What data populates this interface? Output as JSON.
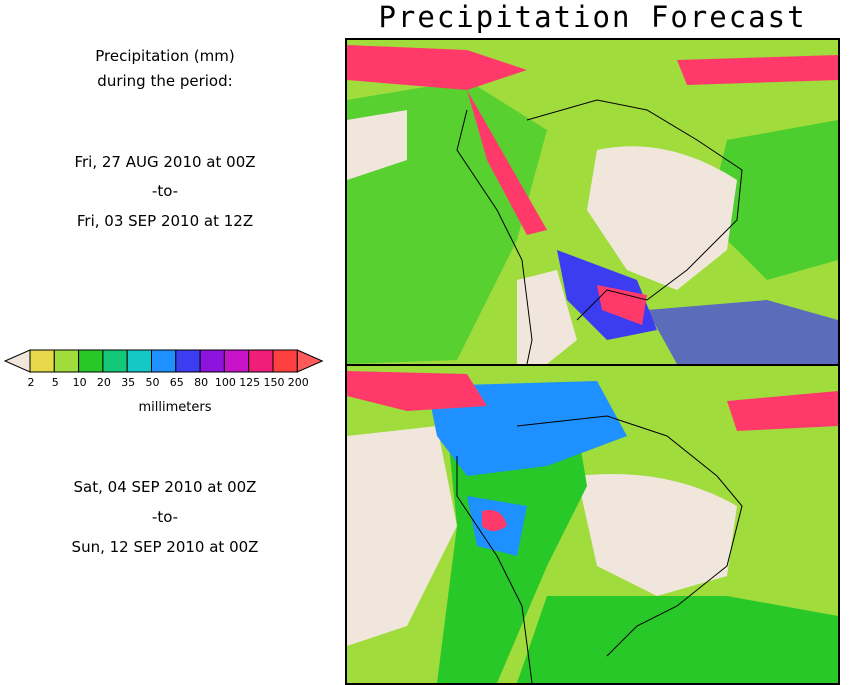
{
  "title": "Precipitation Forecast",
  "period_caption": [
    "Precipitation (mm)",
    "during the period:"
  ],
  "period1": {
    "start": "Fri, 27 AUG 2010 at 00Z",
    "sep": "-to-",
    "end": "Fri, 03 SEP 2010 at 12Z"
  },
  "period2": {
    "start": "Sat, 04 SEP 2010 at 00Z",
    "sep": "-to-",
    "end": "Sun, 12 SEP 2010 at 00Z"
  },
  "legend": {
    "unit": "millimeters",
    "ticks": [
      "2",
      "5",
      "10",
      "20",
      "35",
      "50",
      "65",
      "80",
      "100",
      "125",
      "150",
      "200"
    ],
    "colors": [
      "#f0e6dc",
      "#e6d84a",
      "#a0dc3c",
      "#28c828",
      "#14c878",
      "#14c8c8",
      "#1e90ff",
      "#3c3cf0",
      "#8c14dc",
      "#c814c8",
      "#f01e78",
      "#ff4040",
      "#ff5a5a"
    ]
  },
  "maps": [
    {
      "name": "week1",
      "colors": {
        "ocean": "#a0dc3c",
        "dry": "#f0e6dc",
        "moderate": "#28c828",
        "heavy": "#3c3cf0",
        "extreme": "#ff3a6a"
      }
    },
    {
      "name": "week2",
      "colors": {
        "ocean": "#a0dc3c",
        "dry": "#f0e6dc",
        "moderate": "#28c828",
        "heavy": "#1e90ff",
        "extreme": "#ff3a6a"
      }
    }
  ]
}
